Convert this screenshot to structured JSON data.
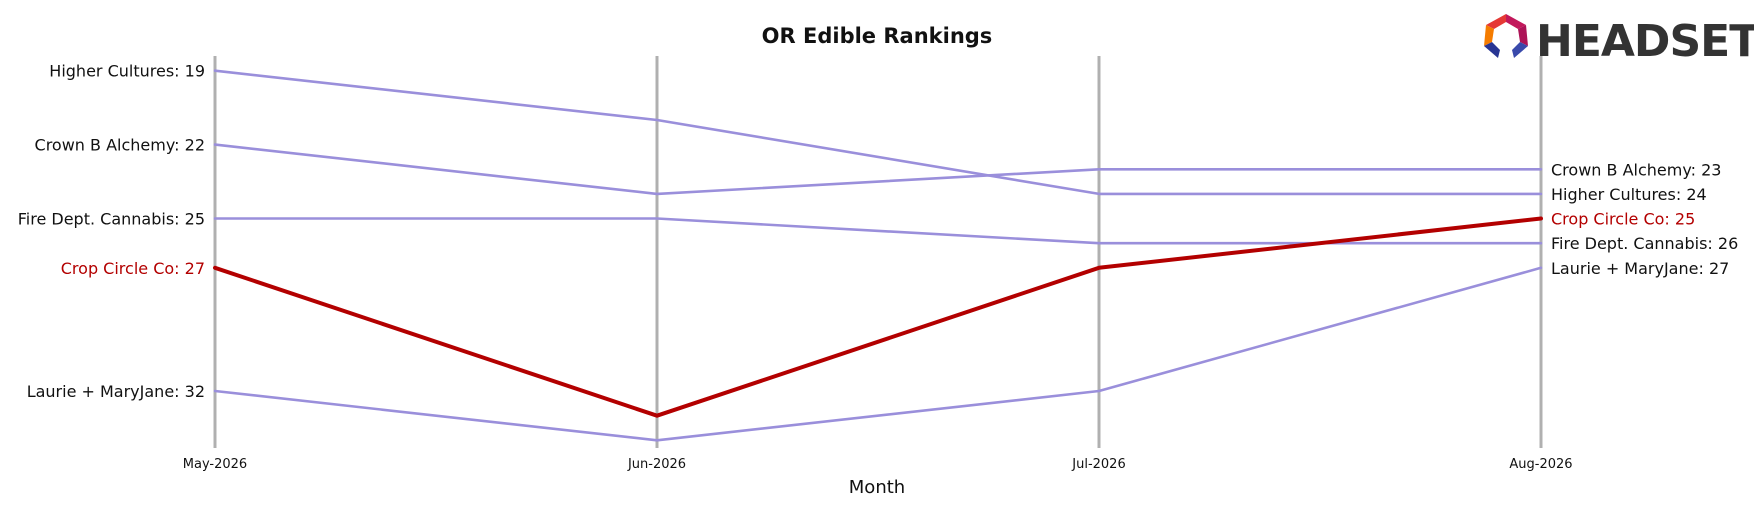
{
  "colors": {
    "highlight": "#b30000",
    "other": "#9a8fdb",
    "axis_line": "#b0b0b0",
    "text": "#111111"
  },
  "logo": {
    "text": "HEADSET",
    "icon": "headset-logo-icon"
  },
  "chart_data": {
    "type": "line",
    "title": "OR Edible Rankings",
    "xlabel": "Month",
    "ylabel": "",
    "categories": [
      "May-2026",
      "Jun-2026",
      "Jul-2026",
      "Aug-2026"
    ],
    "y_inverted": true,
    "ylim": [
      18.2,
      34.8
    ],
    "grid": false,
    "highlight_series": "Crop Circle Co",
    "series": [
      {
        "name": "Higher Cultures",
        "values": [
          19,
          21,
          24,
          24
        ],
        "start_label": "Higher Cultures: 19",
        "end_label": "Higher Cultures: 24"
      },
      {
        "name": "Crown B Alchemy",
        "values": [
          22,
          24,
          23,
          23
        ],
        "start_label": "Crown B Alchemy: 22",
        "end_label": "Crown B Alchemy: 23"
      },
      {
        "name": "Fire Dept. Cannabis",
        "values": [
          25,
          25,
          26,
          26
        ],
        "start_label": "Fire Dept. Cannabis: 25",
        "end_label": "Fire Dept. Cannabis: 26"
      },
      {
        "name": "Crop Circle Co",
        "values": [
          27,
          33,
          27,
          25
        ],
        "start_label": "Crop Circle Co: 27",
        "end_label": "Crop Circle Co: 25"
      },
      {
        "name": "Laurie + MaryJane",
        "values": [
          32,
          34,
          32,
          27
        ],
        "start_label": "Laurie + MaryJane: 32",
        "end_label": "Laurie + MaryJane: 27"
      }
    ]
  }
}
